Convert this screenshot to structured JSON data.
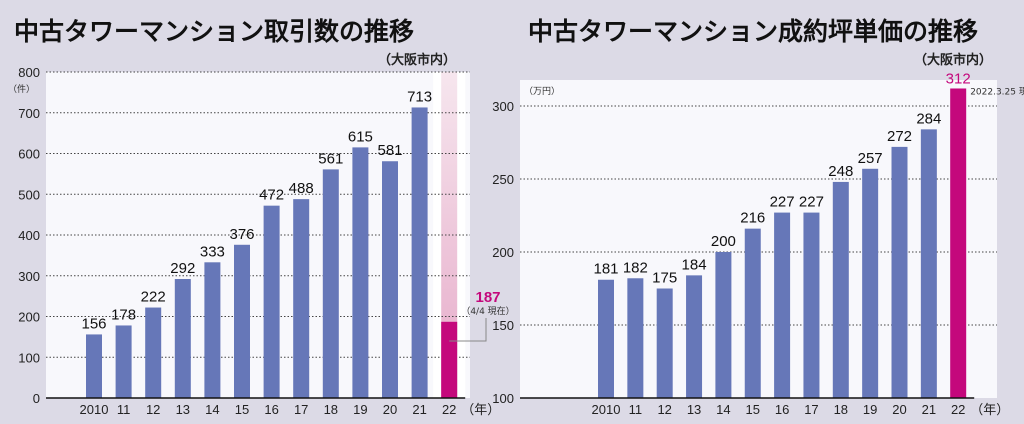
{
  "chart_data": [
    {
      "type": "bar",
      "title": "中古タワーマンション取引数の推移",
      "subtitle": "（大阪市内）",
      "ylabel": "（件）",
      "xunit": "（年）",
      "ylim": [
        0,
        800
      ],
      "yticks": [
        0,
        100,
        200,
        300,
        400,
        500,
        600,
        700,
        800
      ],
      "grid": true,
      "categories": [
        "2010",
        "11",
        "12",
        "13",
        "14",
        "15",
        "16",
        "17",
        "18",
        "19",
        "20",
        "21",
        "22"
      ],
      "values": [
        156,
        178,
        222,
        292,
        333,
        376,
        472,
        488,
        561,
        615,
        581,
        713,
        187
      ],
      "highlight_index": 12,
      "highlight_label": "187",
      "annotation": "（4/4 現在）",
      "colors": {
        "bar": "#6677b8",
        "highlight": "#c4087c",
        "highlight_fade": "#e8b8d0"
      }
    },
    {
      "type": "bar",
      "title": "中古タワーマンション成約坪単価の推移",
      "subtitle": "（大阪市内）",
      "ylabel": "（万円）",
      "xunit": "（年）",
      "ylim": [
        100,
        300
      ],
      "yticks": [
        100,
        150,
        200,
        250,
        300
      ],
      "grid": true,
      "categories": [
        "2010",
        "11",
        "12",
        "13",
        "14",
        "15",
        "16",
        "17",
        "18",
        "19",
        "20",
        "21",
        "22"
      ],
      "values": [
        181,
        182,
        175,
        184,
        200,
        216,
        227,
        227,
        248,
        257,
        272,
        284,
        312
      ],
      "highlight_index": 12,
      "highlight_label": "312",
      "annotation": "2022.3.25 現在",
      "colors": {
        "bar": "#6677b8",
        "highlight": "#c4087c"
      }
    }
  ]
}
